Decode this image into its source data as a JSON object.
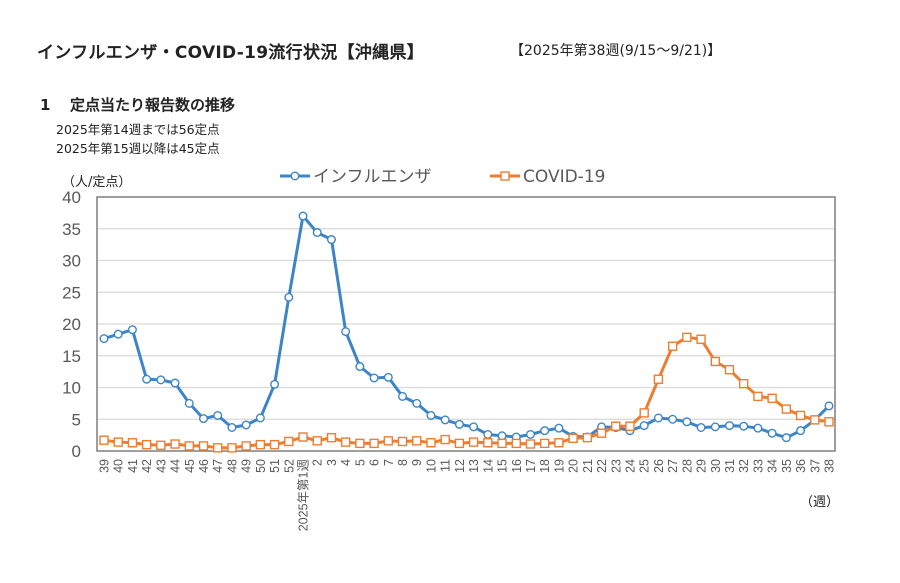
{
  "header": {
    "title": "インフルエンザ・COVID-19流行状況【沖縄県】",
    "period": "【2025年第38週(9/15～9/21)】"
  },
  "section": {
    "number": "1",
    "heading": "定点当たり報告数の推移",
    "notes": [
      "2025年第14週までは56定点",
      "2025年第15週以降は45定点"
    ]
  },
  "chart_data": {
    "type": "line",
    "title": "",
    "ylabel": "（人/定点）",
    "xlabel": "（週）",
    "ylim": [
      0,
      40
    ],
    "yticks": [
      0,
      5,
      10,
      15,
      20,
      25,
      30,
      35,
      40
    ],
    "grid": true,
    "legend_position": "top",
    "categories": [
      "39",
      "40",
      "41",
      "42",
      "43",
      "44",
      "45",
      "46",
      "47",
      "48",
      "49",
      "50",
      "51",
      "52",
      "2025年第1週",
      "2",
      "3",
      "4",
      "5",
      "6",
      "7",
      "8",
      "9",
      "10",
      "11",
      "12",
      "13",
      "14",
      "15",
      "16",
      "17",
      "18",
      "19",
      "20",
      "21",
      "22",
      "23",
      "24",
      "25",
      "26",
      "27",
      "28",
      "29",
      "30",
      "31",
      "32",
      "33",
      "34",
      "35",
      "36",
      "37",
      "38"
    ],
    "series": [
      {
        "name": "インフルエンザ",
        "color": "#3d85c6",
        "marker": "circle",
        "values": [
          17.7,
          18.4,
          19.1,
          11.3,
          11.2,
          10.7,
          7.5,
          5.1,
          5.6,
          3.7,
          4.1,
          5.2,
          10.5,
          24.2,
          37.0,
          34.4,
          33.3,
          18.8,
          13.3,
          11.5,
          11.6,
          8.6,
          7.5,
          5.6,
          4.9,
          4.2,
          3.8,
          2.6,
          2.4,
          2.2,
          2.6,
          3.2,
          3.6,
          2.3,
          2.2,
          3.8,
          3.7,
          3.2,
          4.0,
          5.2,
          5.0,
          4.6,
          3.7,
          3.8,
          4.0,
          3.9,
          3.6,
          2.8,
          2.1,
          3.2,
          4.9,
          7.1
        ]
      },
      {
        "name": "COVID-19",
        "color": "#ed7d31",
        "marker": "square",
        "values": [
          1.7,
          1.4,
          1.3,
          1.0,
          0.9,
          1.1,
          0.8,
          0.8,
          0.5,
          0.5,
          0.8,
          1.0,
          1.0,
          1.5,
          2.2,
          1.6,
          2.1,
          1.4,
          1.2,
          1.2,
          1.6,
          1.5,
          1.6,
          1.3,
          1.8,
          1.2,
          1.4,
          1.3,
          1.2,
          1.2,
          1.1,
          1.2,
          1.3,
          2.0,
          2.1,
          2.8,
          3.9,
          3.9,
          6.0,
          11.3,
          16.5,
          17.9,
          17.6,
          14.1,
          12.8,
          10.6,
          8.6,
          8.3,
          6.6,
          5.6,
          4.9,
          4.6
        ]
      }
    ]
  }
}
